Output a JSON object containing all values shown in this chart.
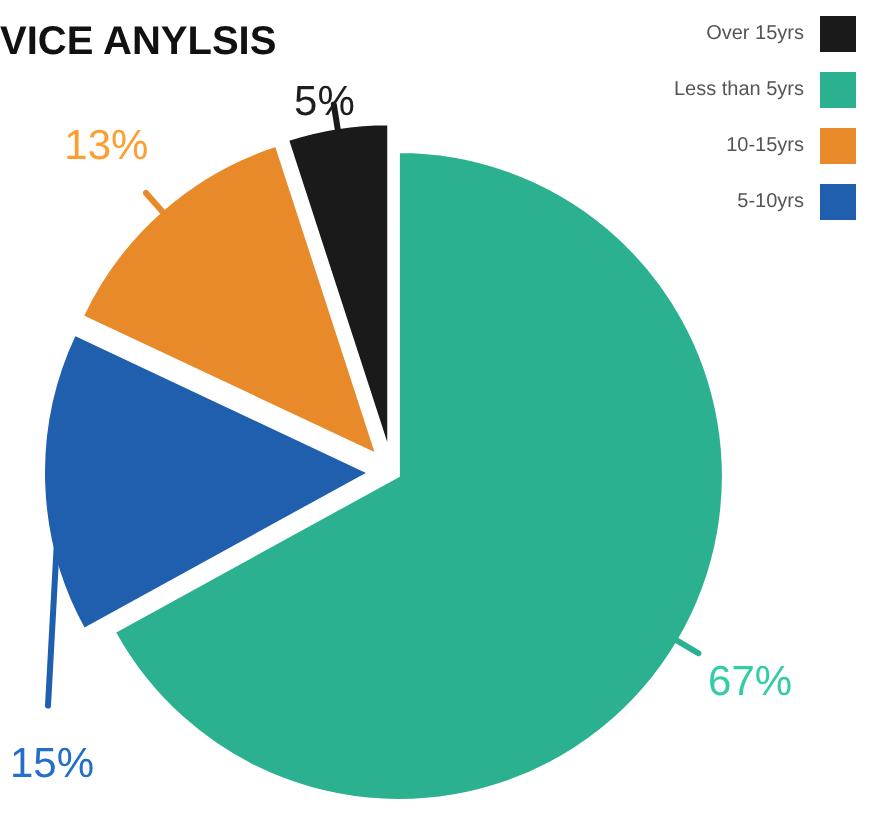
{
  "chart_data": {
    "type": "pie",
    "title": "VICE ANYLSIS",
    "categories": [
      "Less than 5yrs",
      "5-10yrs",
      "10-15yrs",
      "Over 15yrs"
    ],
    "values": [
      67,
      15,
      13,
      5
    ],
    "colors": [
      "#2bb18f",
      "#1f5fae",
      "#e8892a",
      "#1a1a1a"
    ],
    "value_labels": [
      "67%",
      "15%",
      "13%",
      "5%"
    ],
    "legend": "top right"
  }
}
